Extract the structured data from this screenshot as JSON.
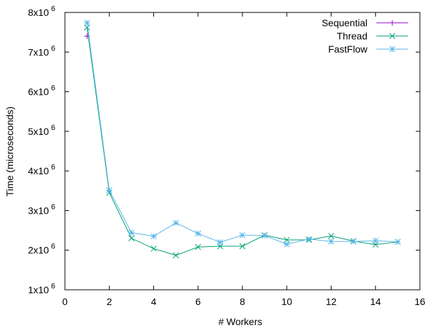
{
  "chart_data": {
    "type": "line",
    "xlabel": "# Workers",
    "ylabel": "Time (microseconds)",
    "xlim": [
      0,
      16
    ],
    "ylim": [
      1000000,
      8000000
    ],
    "x_ticks": [
      0,
      2,
      4,
      6,
      8,
      10,
      12,
      14,
      16
    ],
    "y_ticks": [
      {
        "value": 1000000,
        "mantissa": "1x10",
        "exp": "6"
      },
      {
        "value": 2000000,
        "mantissa": "2x10",
        "exp": "6"
      },
      {
        "value": 3000000,
        "mantissa": "3x10",
        "exp": "6"
      },
      {
        "value": 4000000,
        "mantissa": "4x10",
        "exp": "6"
      },
      {
        "value": 5000000,
        "mantissa": "5x10",
        "exp": "6"
      },
      {
        "value": 6000000,
        "mantissa": "6x10",
        "exp": "6"
      },
      {
        "value": 7000000,
        "mantissa": "7x10",
        "exp": "6"
      },
      {
        "value": 8000000,
        "mantissa": "8x10",
        "exp": "6"
      }
    ],
    "grid": false,
    "legend_position": "top-right",
    "series": [
      {
        "name": "Sequential",
        "color": "#9400d3",
        "marker": "plus",
        "x": [
          1
        ],
        "y": [
          7400000
        ]
      },
      {
        "name": "Thread",
        "color": "#009e73",
        "marker": "cross",
        "x": [
          1,
          2,
          3,
          4,
          5,
          6,
          7,
          8,
          9,
          10,
          11,
          12,
          13,
          14,
          15
        ],
        "y": [
          7620000,
          3450000,
          2300000,
          2040000,
          1870000,
          2080000,
          2100000,
          2100000,
          2380000,
          2260000,
          2260000,
          2360000,
          2230000,
          2140000,
          2210000
        ]
      },
      {
        "name": "FastFlow",
        "color": "#56b4e9",
        "marker": "star",
        "x": [
          1,
          2,
          3,
          4,
          5,
          6,
          7,
          8,
          9,
          10,
          11,
          12,
          13,
          14,
          15
        ],
        "y": [
          7740000,
          3510000,
          2440000,
          2350000,
          2690000,
          2420000,
          2200000,
          2380000,
          2370000,
          2150000,
          2280000,
          2220000,
          2220000,
          2240000,
          2210000
        ]
      }
    ]
  }
}
